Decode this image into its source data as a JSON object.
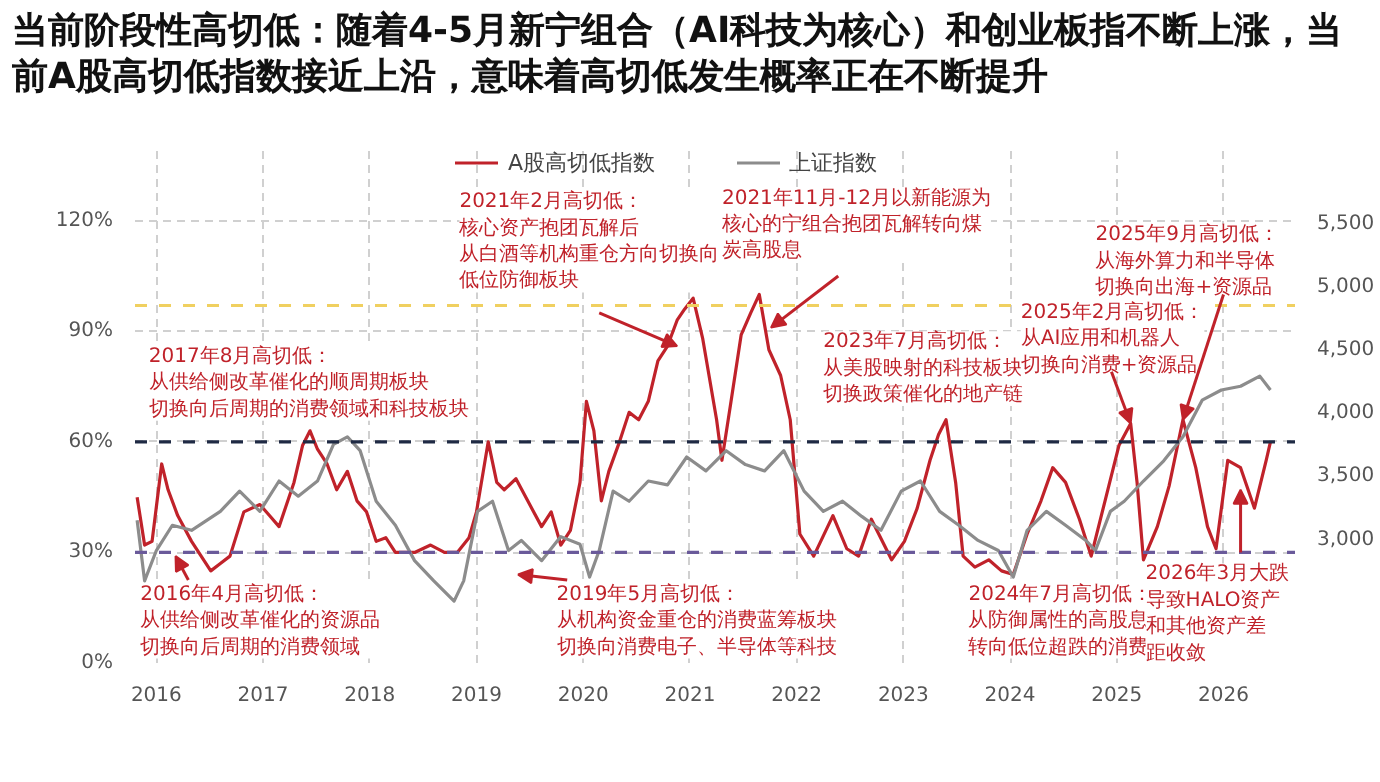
{
  "chart_data": {
    "type": "line",
    "title": "当前阶段性高切低：随着4-5月新宁组合（AI科技为核心）和创业板指不断上涨，当前A股高切低指数接近上沿，意味着高切低发生概率正在不断提升",
    "xlim": [
      2015.8,
      2026.67
    ],
    "xticks": [
      2016,
      2017,
      2018,
      2019,
      2020,
      2021,
      2022,
      2023,
      2024,
      2025,
      2026
    ],
    "ylim": [
      0,
      140
    ],
    "yticks": [
      {
        "value": 0,
        "label": "0%"
      },
      {
        "value": 30,
        "label": "30%"
      },
      {
        "value": 60,
        "label": "60%"
      },
      {
        "value": 90,
        "label": "90%"
      },
      {
        "value": 120,
        "label": "120%"
      }
    ],
    "y2lim": [
      2000,
      6083
    ],
    "y2ticks": [
      {
        "value": 3000,
        "label": "3,000"
      },
      {
        "value": 3500,
        "label": "3,500"
      },
      {
        "value": 4000,
        "label": "4,000"
      },
      {
        "value": 4500,
        "label": "4,500"
      },
      {
        "value": 5000,
        "label": "5,000"
      },
      {
        "value": 5500,
        "label": "5,500"
      }
    ],
    "grid": true,
    "legend": "top",
    "line_style": "solid",
    "series": [
      {
        "name": "A股高切低指数",
        "color": "#c0222a",
        "x": [
          2015.82,
          2015.89,
          2015.96,
          2016.05,
          2016.11,
          2016.2,
          2016.33,
          2016.51,
          2016.6,
          2016.69,
          2016.82,
          2016.97,
          2017.06,
          2017.15,
          2017.29,
          2017.37,
          2017.44,
          2017.51,
          2017.6,
          2017.69,
          2017.79,
          2017.88,
          2017.97,
          2018.06,
          2018.15,
          2018.24,
          2018.42,
          2018.57,
          2018.7,
          2018.82,
          2018.93,
          2019.0,
          2019.11,
          2019.19,
          2019.26,
          2019.37,
          2019.48,
          2019.61,
          2019.7,
          2019.79,
          2019.88,
          2019.97,
          2020.03,
          2020.1,
          2020.17,
          2020.24,
          2020.34,
          2020.43,
          2020.52,
          2020.61,
          2020.7,
          2020.79,
          2020.88,
          2020.95,
          2021.03,
          2021.12,
          2021.25,
          2021.3,
          2021.38,
          2021.48,
          2021.57,
          2021.65,
          2021.74,
          2021.85,
          2021.94,
          2022.03,
          2022.16,
          2022.34,
          2022.47,
          2022.58,
          2022.7,
          2022.89,
          2023.01,
          2023.13,
          2023.25,
          2023.33,
          2023.4,
          2023.49,
          2023.56,
          2023.67,
          2023.8,
          2023.92,
          2024.03,
          2024.16,
          2024.29,
          2024.4,
          2024.52,
          2024.65,
          2024.76,
          2024.89,
          2025.02,
          2025.13,
          2025.19,
          2025.25,
          2025.38,
          2025.49,
          2025.62,
          2025.74,
          2025.85,
          2025.93,
          2026.04,
          2026.16,
          2026.29,
          2026.4,
          2026.44
        ],
        "values": [
          45,
          32,
          33,
          54,
          47,
          40,
          33,
          25,
          27,
          29,
          41,
          43,
          40,
          37,
          49,
          59,
          63,
          58,
          54,
          47,
          52,
          44,
          41,
          33,
          34,
          30,
          30,
          32,
          30,
          30,
          34,
          41,
          60,
          49,
          47,
          50,
          44,
          37,
          41,
          32,
          36,
          49,
          71,
          63,
          44,
          52,
          60,
          68,
          66,
          71,
          82,
          86,
          93,
          96,
          99,
          88,
          66,
          55,
          70,
          89,
          95,
          100,
          85,
          78,
          66,
          35,
          29,
          40,
          31,
          29,
          39,
          28,
          33,
          42,
          55,
          62,
          66,
          49,
          29,
          26,
          28,
          25,
          24,
          35,
          44,
          53,
          49,
          39,
          29,
          44,
          59,
          65,
          49,
          28,
          37,
          48,
          66,
          53,
          37,
          31,
          55,
          53,
          42,
          55,
          60
        ]
      },
      {
        "name": "上证指数",
        "color": "#8c8c8c",
        "axis": "y2",
        "x": [
          2015.82,
          2015.89,
          2016.0,
          2016.15,
          2016.33,
          2016.6,
          2016.78,
          2016.97,
          2017.15,
          2017.33,
          2017.51,
          2017.66,
          2017.79,
          2017.91,
          2018.06,
          2018.24,
          2018.42,
          2018.6,
          2018.79,
          2018.88,
          2019.01,
          2019.15,
          2019.3,
          2019.42,
          2019.61,
          2019.79,
          2019.97,
          2020.06,
          2020.15,
          2020.28,
          2020.43,
          2020.61,
          2020.79,
          2020.97,
          2021.15,
          2021.34,
          2021.52,
          2021.7,
          2021.88,
          2022.07,
          2022.25,
          2022.43,
          2022.61,
          2022.79,
          2022.98,
          2023.16,
          2023.34,
          2023.52,
          2023.7,
          2023.89,
          2024.03,
          2024.16,
          2024.34,
          2024.52,
          2024.71,
          2024.8,
          2024.94,
          2025.07,
          2025.25,
          2025.44,
          2025.62,
          2025.8,
          2025.98,
          2026.16,
          2026.34,
          2026.44
        ],
        "values": [
          3130,
          2650,
          2890,
          3090,
          3050,
          3200,
          3360,
          3200,
          3440,
          3320,
          3440,
          3730,
          3790,
          3680,
          3280,
          3090,
          2810,
          2650,
          2490,
          2650,
          3200,
          3280,
          2890,
          2970,
          2810,
          3000,
          2940,
          2680,
          2890,
          3360,
          3280,
          3440,
          3410,
          3630,
          3520,
          3680,
          3570,
          3520,
          3680,
          3360,
          3200,
          3280,
          3160,
          3050,
          3360,
          3440,
          3200,
          3090,
          2970,
          2890,
          2680,
          3050,
          3200,
          3090,
          2970,
          2890,
          3200,
          3280,
          3440,
          3600,
          3790,
          4080,
          4160,
          4190,
          4270,
          4160
        ]
      }
    ],
    "ref_lines": [
      {
        "axis": "y",
        "value": 97,
        "color": "#f0d060",
        "line_style": "dashed"
      },
      {
        "axis": "y",
        "value": 60,
        "color": "#1f2a44",
        "line_style": "dashed"
      },
      {
        "axis": "y",
        "value": 30,
        "color": "#6a5a9a",
        "line_style": "dashed"
      }
    ],
    "annotations": [
      {
        "text": "2016年4月高切低：从供给侧改革催化的资源品切换向后周期的消费领域",
        "x": 2016.18,
        "y": 29
      },
      "2017年8月高切低：从供给侧改革催化的顺周期板块切换向后周期的消费领域和科技板块",
      {
        "text": "2021年2月高切低：核心资产抱团瓦解后从白酒等机构重仓方向切换向低位防御板块",
        "x": 2020.88,
        "y": 86
      },
      {
        "text": "2021年11月-12月以新能源为核心的宁组合抱团瓦解转向煤炭高股息",
        "x": 2021.76,
        "y": 91
      },
      "2023年7月高切低：从美股映射的科技板块切换政策催化的地产链",
      {
        "text": "2025年2月高切低：从AI应用和机器人切换向消费+资源品",
        "x": 2025.13,
        "y": 65
      },
      {
        "text": "2025年9月高切低：从海外算力和半导体切换向出海+资源品",
        "x": 2025.62,
        "y": 66
      },
      "2019年5月高切低：从机构资金重仓的消费蓝筹板块切换向消费电子、半导体等科技",
      "2024年7月高切低：从防御属性的高股息转向低位超跌的消费",
      {
        "text": "2026年3月大跌导致HALO资产和其他资产差距收敛",
        "x": 2026.16,
        "y": 47
      }
    ]
  }
}
